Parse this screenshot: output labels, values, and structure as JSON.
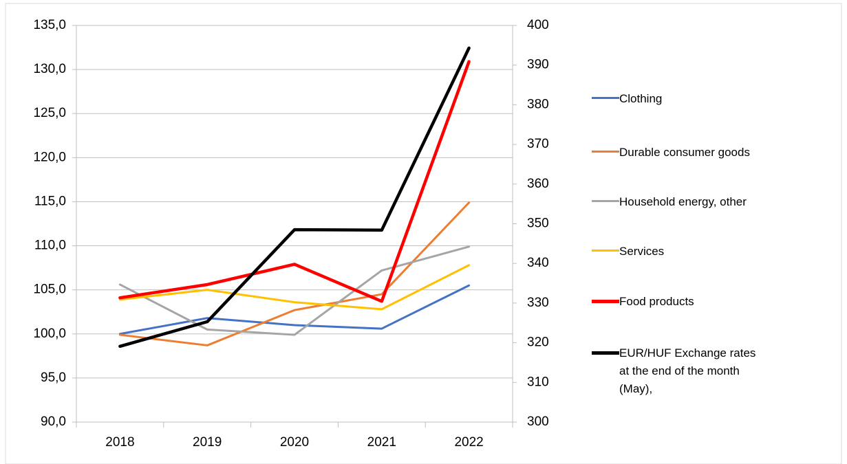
{
  "chart_data": {
    "type": "line",
    "categories": [
      "2018",
      "2019",
      "2020",
      "2021",
      "2022"
    ],
    "ylim": [
      90,
      135
    ],
    "yticks": [
      {
        "value": 90,
        "label": "90,0"
      },
      {
        "value": 95,
        "label": "95,0"
      },
      {
        "value": 100,
        "label": "100,0"
      },
      {
        "value": 105,
        "label": "105,0"
      },
      {
        "value": 110,
        "label": "110,0"
      },
      {
        "value": 115,
        "label": "115,0"
      },
      {
        "value": 120,
        "label": "120,0"
      },
      {
        "value": 125,
        "label": "125,0"
      },
      {
        "value": 130,
        "label": "130,0"
      },
      {
        "value": 135,
        "label": "135,0"
      }
    ],
    "y2lim": [
      300,
      400
    ],
    "y2ticks": [
      300,
      310,
      320,
      330,
      340,
      350,
      360,
      370,
      380,
      390,
      400
    ],
    "grid": true,
    "legend": "right",
    "series": [
      {
        "name": "Clothing",
        "color": "#4472c4",
        "line_width": 3,
        "values": [
          100.0,
          101.8,
          101.0,
          100.6,
          105.5
        ]
      },
      {
        "name": "Durable consumer goods",
        "color": "#ed7d31",
        "line_width": 3,
        "values": [
          99.9,
          98.7,
          102.7,
          104.5,
          114.9
        ]
      },
      {
        "name": "Household energy, other",
        "color": "#a5a5a5",
        "line_width": 3,
        "values": [
          105.6,
          100.5,
          99.9,
          107.2,
          109.9
        ]
      },
      {
        "name": "Services",
        "color": "#ffc000",
        "line_width": 3,
        "values": [
          103.9,
          105.0,
          103.6,
          102.8,
          107.8
        ]
      },
      {
        "name": "Food products",
        "color": "#ff0000",
        "line_width": 4.5,
        "values": [
          104.1,
          105.6,
          107.9,
          103.7,
          130.9
        ]
      },
      {
        "name": "EUR/HUF Exchange rates at the end of the month (May),",
        "color": "#000000",
        "line_width": 4.5,
        "axis": "y2",
        "values": [
          319.1,
          325.3,
          348.5,
          348.4,
          394.3
        ]
      }
    ]
  }
}
